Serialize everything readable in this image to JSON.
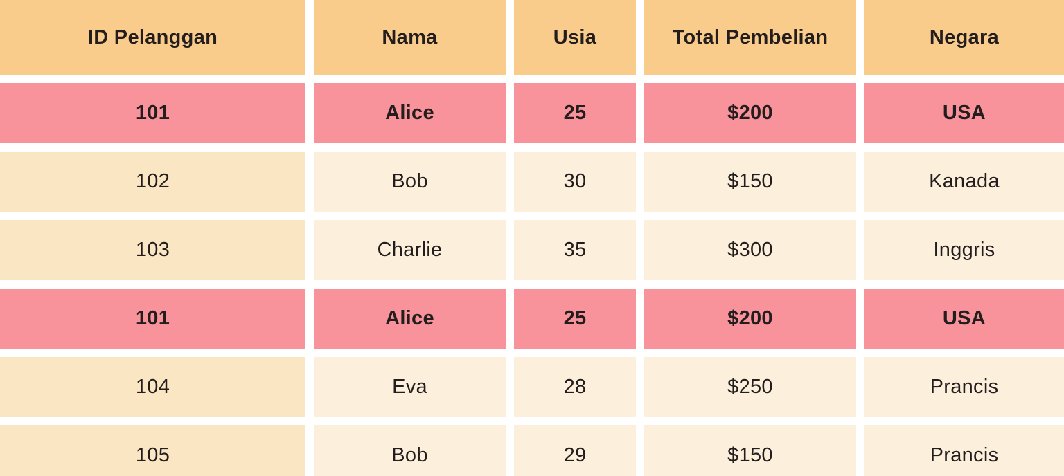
{
  "colors": {
    "header_bg": "#facc8c",
    "duplicate_row_bg": "#f8929b",
    "first_col_bg": "#fbe6c4",
    "cell_bg": "#fcf0dd",
    "gap": "#ffffff",
    "text": "#231d1d"
  },
  "chart_data": {
    "type": "table",
    "title": "",
    "columns": [
      "ID Pelanggan",
      "Nama",
      "Usia",
      "Total Pembelian",
      "Negara"
    ],
    "rows": [
      [
        "101",
        "Alice",
        "25",
        "$200",
        "USA"
      ],
      [
        "102",
        "Bob",
        "30",
        "$150",
        "Kanada"
      ],
      [
        "103",
        "Charlie",
        "35",
        "$300",
        "Inggris"
      ],
      [
        "101",
        "Alice",
        "25",
        "$200",
        "USA"
      ],
      [
        "104",
        "Eva",
        "28",
        "$250",
        "Prancis"
      ],
      [
        "105",
        "Bob",
        "29",
        "$150",
        "Prancis"
      ]
    ],
    "highlighted_rows": [
      0,
      3
    ],
    "layout_hints": {
      "header_row": true,
      "grid": "white gaps between cells",
      "last_row_clipped_at_bottom": true
    }
  }
}
